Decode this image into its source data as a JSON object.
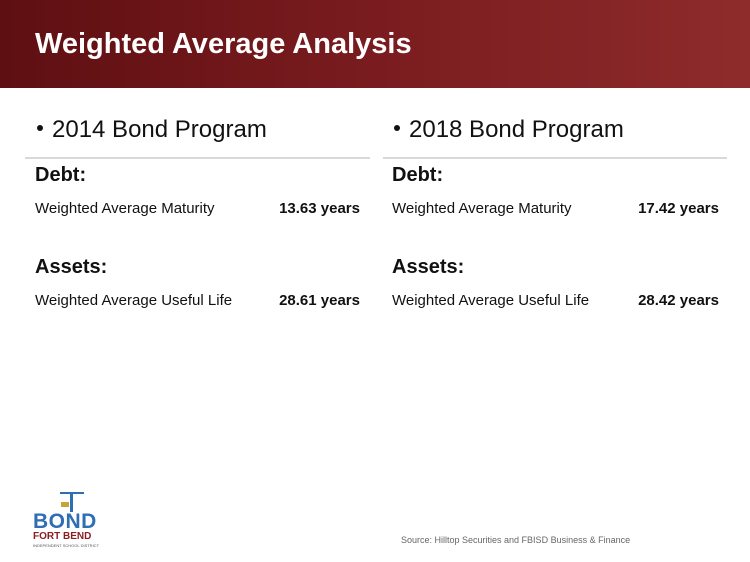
{
  "header": {
    "title": "Weighted Average Analysis"
  },
  "columns": [
    {
      "heading": "2014 Bond Program",
      "sections": [
        {
          "label": "Debt:",
          "rows": [
            {
              "label": "Weighted Average Maturity",
              "value": "13.63 years"
            }
          ]
        },
        {
          "label": "Assets:",
          "rows": [
            {
              "label": "Weighted Average Useful Life",
              "value": "28.61 years"
            }
          ]
        }
      ]
    },
    {
      "heading": "2018 Bond Program",
      "sections": [
        {
          "label": "Debt:",
          "rows": [
            {
              "label": "Weighted Average Maturity",
              "value": "17.42 years"
            }
          ]
        },
        {
          "label": "Assets:",
          "rows": [
            {
              "label": "Weighted Average Useful Life",
              "value": "28.42 years"
            }
          ]
        }
      ]
    }
  ],
  "logo": {
    "name": "BOND",
    "subtitle": "FORT BEND",
    "tagline": "INDEPENDENT SCHOOL DISTRICT"
  },
  "footer": {
    "source": "Source: Hilltop Securities and FBISD Business & Finance"
  }
}
